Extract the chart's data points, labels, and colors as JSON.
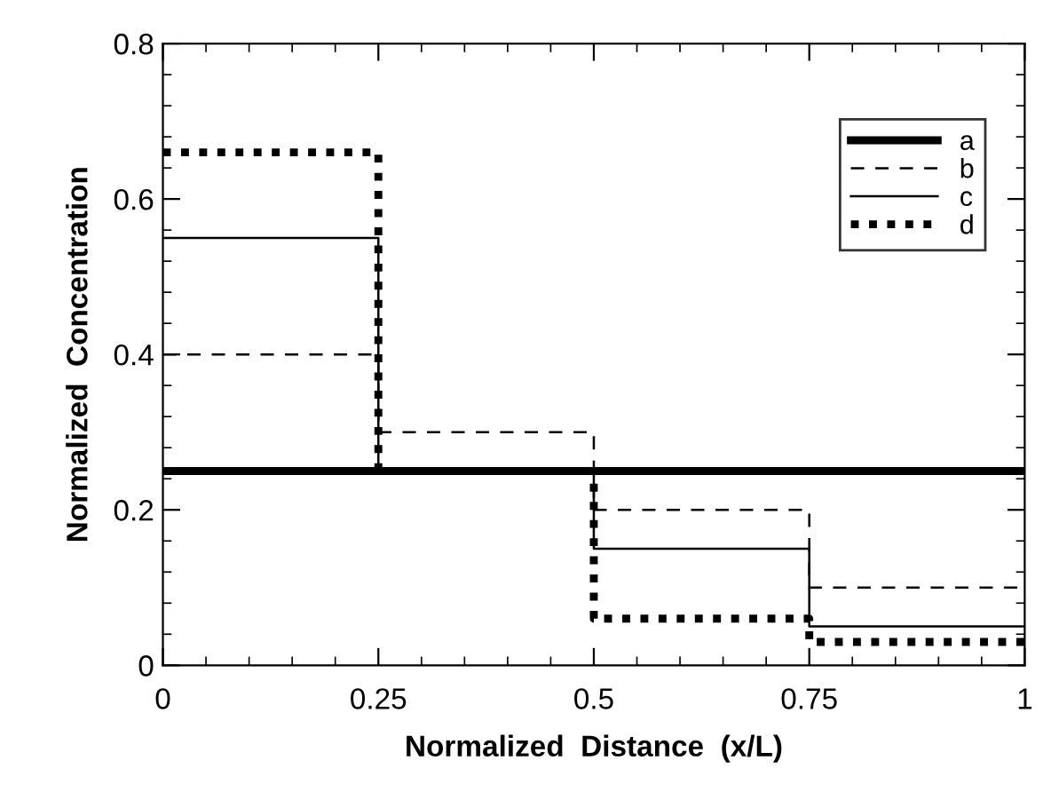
{
  "chart_data": {
    "type": "step",
    "xlabel": "Normalized  Distance  (x/L)",
    "ylabel": "Normalized  Concentration",
    "x": [
      0,
      0.25,
      0.5,
      0.75,
      1
    ],
    "series": [
      {
        "name": "a",
        "color": "#000000",
        "line_style": "solid",
        "values": [
          0.25,
          0.25,
          0.25,
          0.25,
          0.25
        ]
      },
      {
        "name": "b",
        "color": "#000000",
        "line_style": "dashed",
        "values": [
          0.4,
          0.3,
          0.2,
          0.1,
          0.1
        ]
      },
      {
        "name": "c",
        "color": "#000000",
        "line_style": "solid",
        "values": [
          0.55,
          0.25,
          0.15,
          0.05,
          0.05
        ]
      },
      {
        "name": "d",
        "color": "#000000",
        "line_style": "dotted",
        "values": [
          0.66,
          0.25,
          0.06,
          0.03,
          0.03
        ]
      }
    ],
    "xlim": [
      0,
      1
    ],
    "ylim": [
      0,
      0.8
    ],
    "xticks": [
      0,
      0.25,
      0.5,
      0.75,
      1
    ],
    "yticks": [
      0,
      0.2,
      0.4,
      0.6,
      0.8
    ],
    "legend": "top right",
    "grid": false,
    "marker": "none"
  }
}
